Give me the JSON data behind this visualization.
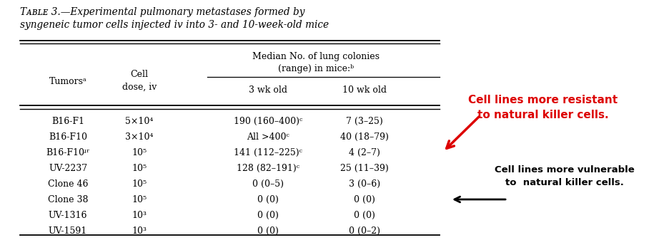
{
  "title_line1": "Tᴀʙʟᴇ 3.—Experimental pulmonary metastases formed by",
  "title_line2": "syngeneic tumor cells injected iv into 3- and 10-week-old mice",
  "header_median": "Median No. of lung colonies",
  "header_range": "(range) in mice:ᵇ",
  "header_tumors": "Tumorsᵃ",
  "header_cell": "Cell",
  "header_dose": "dose, iv",
  "header_3wk": "3 wk old",
  "header_10wk": "10 wk old",
  "rows": [
    [
      "B16-F1",
      "5×10⁴",
      "190 (160–400)ᶜ",
      "7 (3–25)"
    ],
    [
      "B16-F10",
      "3×10⁴",
      "All >400ᶜ",
      "40 (18–79)"
    ],
    [
      "B16-F10ᶡʳ",
      "10⁵",
      "141 (112–225)ᶜ",
      "4 (2–7)"
    ],
    [
      "UV-2237",
      "10⁵",
      "128 (82–191)ᶜ",
      "25 (11–39)"
    ],
    [
      "Clone 46",
      "10⁵",
      "0 (0–5)",
      "3 (0–6)"
    ],
    [
      "Clone 38",
      "10⁵",
      "0 (0)",
      "0 (0)"
    ],
    [
      "UV-1316",
      "10³",
      "0 (0)",
      "0 (0)"
    ],
    [
      "UV-1591",
      "10³",
      "0 (0)",
      "0 (0–2)"
    ]
  ],
  "ann_red1": "Cell lines more resistant",
  "ann_red2": "to natural killer cells.",
  "ann_blk1": "Cell lines more vulnerable",
  "ann_blk2": "to  natural killer cells.",
  "red_color": "#dd0000",
  "black_color": "#000000",
  "white": "#ffffff",
  "fig_w": 9.37,
  "fig_h": 3.44,
  "dpi": 100
}
